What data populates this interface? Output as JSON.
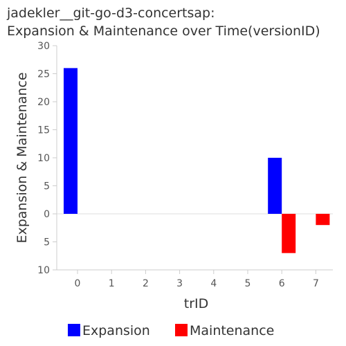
{
  "title_lines": [
    "jadekler__git-go-d3-concertsap:",
    "Expansion & Maintenance over Time(versionID)"
  ],
  "chart_data": {
    "type": "bar",
    "title": "jadekler__git-go-d3-concertsap: Expansion & Maintenance over Time(versionID)",
    "xlabel": "trID",
    "ylabel": "Expansion & Maintenance",
    "categories": [
      "0",
      "1",
      "2",
      "3",
      "4",
      "5",
      "6",
      "7"
    ],
    "y_ticks": [
      {
        "value": 30,
        "label": "30"
      },
      {
        "value": 25,
        "label": "25"
      },
      {
        "value": 20,
        "label": "20"
      },
      {
        "value": 15,
        "label": "15"
      },
      {
        "value": 10,
        "label": "10"
      },
      {
        "value": 5,
        "label": "5"
      },
      {
        "value": 0,
        "label": "0"
      },
      {
        "value": -5,
        "label": "5"
      },
      {
        "value": -10,
        "label": "10"
      }
    ],
    "ylim": [
      -10,
      30
    ],
    "series": [
      {
        "name": "Expansion",
        "color": "#0000ff",
        "values": [
          26,
          0,
          0,
          0,
          0,
          0,
          10,
          0
        ]
      },
      {
        "name": "Maintenance",
        "color": "#ff0000",
        "values": [
          0,
          0,
          0,
          0,
          0,
          0,
          -7,
          -2
        ]
      }
    ],
    "legend_position": "bottom",
    "grid": false
  }
}
